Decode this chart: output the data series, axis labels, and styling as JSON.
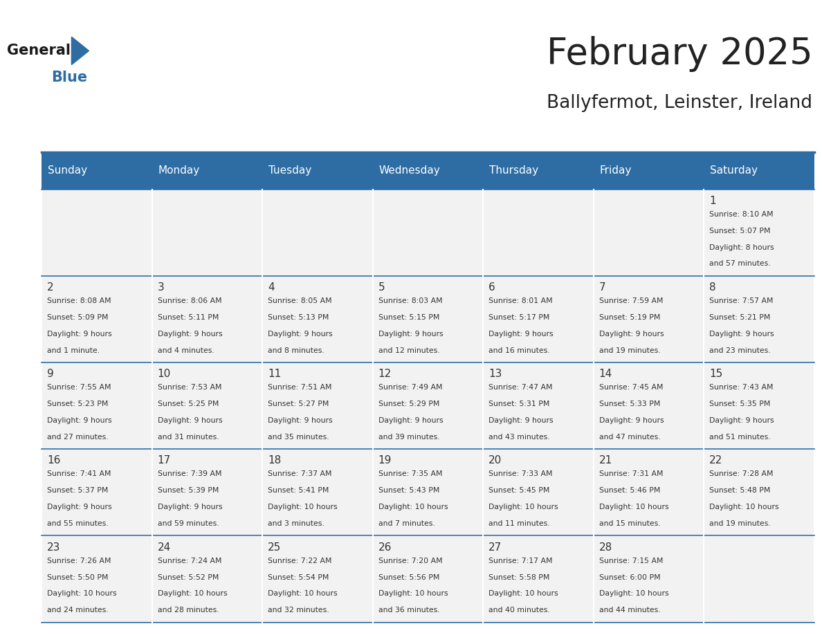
{
  "title": "February 2025",
  "subtitle": "Ballyfermot, Leinster, Ireland",
  "days_of_week": [
    "Sunday",
    "Monday",
    "Tuesday",
    "Wednesday",
    "Thursday",
    "Friday",
    "Saturday"
  ],
  "header_bg": "#2E6DA4",
  "header_fg": "#FFFFFF",
  "cell_bg": "#F2F2F2",
  "border_color": "#2E6DA4",
  "text_color": "#333333",
  "title_color": "#222222",
  "calendar": [
    [
      null,
      null,
      null,
      null,
      null,
      null,
      {
        "day": 1,
        "sunrise": "8:10 AM",
        "sunset": "5:07 PM",
        "daylight": "8 hours and 57 minutes."
      }
    ],
    [
      {
        "day": 2,
        "sunrise": "8:08 AM",
        "sunset": "5:09 PM",
        "daylight": "9 hours and 1 minute."
      },
      {
        "day": 3,
        "sunrise": "8:06 AM",
        "sunset": "5:11 PM",
        "daylight": "9 hours and 4 minutes."
      },
      {
        "day": 4,
        "sunrise": "8:05 AM",
        "sunset": "5:13 PM",
        "daylight": "9 hours and 8 minutes."
      },
      {
        "day": 5,
        "sunrise": "8:03 AM",
        "sunset": "5:15 PM",
        "daylight": "9 hours and 12 minutes."
      },
      {
        "day": 6,
        "sunrise": "8:01 AM",
        "sunset": "5:17 PM",
        "daylight": "9 hours and 16 minutes."
      },
      {
        "day": 7,
        "sunrise": "7:59 AM",
        "sunset": "5:19 PM",
        "daylight": "9 hours and 19 minutes."
      },
      {
        "day": 8,
        "sunrise": "7:57 AM",
        "sunset": "5:21 PM",
        "daylight": "9 hours and 23 minutes."
      }
    ],
    [
      {
        "day": 9,
        "sunrise": "7:55 AM",
        "sunset": "5:23 PM",
        "daylight": "9 hours and 27 minutes."
      },
      {
        "day": 10,
        "sunrise": "7:53 AM",
        "sunset": "5:25 PM",
        "daylight": "9 hours and 31 minutes."
      },
      {
        "day": 11,
        "sunrise": "7:51 AM",
        "sunset": "5:27 PM",
        "daylight": "9 hours and 35 minutes."
      },
      {
        "day": 12,
        "sunrise": "7:49 AM",
        "sunset": "5:29 PM",
        "daylight": "9 hours and 39 minutes."
      },
      {
        "day": 13,
        "sunrise": "7:47 AM",
        "sunset": "5:31 PM",
        "daylight": "9 hours and 43 minutes."
      },
      {
        "day": 14,
        "sunrise": "7:45 AM",
        "sunset": "5:33 PM",
        "daylight": "9 hours and 47 minutes."
      },
      {
        "day": 15,
        "sunrise": "7:43 AM",
        "sunset": "5:35 PM",
        "daylight": "9 hours and 51 minutes."
      }
    ],
    [
      {
        "day": 16,
        "sunrise": "7:41 AM",
        "sunset": "5:37 PM",
        "daylight": "9 hours and 55 minutes."
      },
      {
        "day": 17,
        "sunrise": "7:39 AM",
        "sunset": "5:39 PM",
        "daylight": "9 hours and 59 minutes."
      },
      {
        "day": 18,
        "sunrise": "7:37 AM",
        "sunset": "5:41 PM",
        "daylight": "10 hours and 3 minutes."
      },
      {
        "day": 19,
        "sunrise": "7:35 AM",
        "sunset": "5:43 PM",
        "daylight": "10 hours and 7 minutes."
      },
      {
        "day": 20,
        "sunrise": "7:33 AM",
        "sunset": "5:45 PM",
        "daylight": "10 hours and 11 minutes."
      },
      {
        "day": 21,
        "sunrise": "7:31 AM",
        "sunset": "5:46 PM",
        "daylight": "10 hours and 15 minutes."
      },
      {
        "day": 22,
        "sunrise": "7:28 AM",
        "sunset": "5:48 PM",
        "daylight": "10 hours and 19 minutes."
      }
    ],
    [
      {
        "day": 23,
        "sunrise": "7:26 AM",
        "sunset": "5:50 PM",
        "daylight": "10 hours and 24 minutes."
      },
      {
        "day": 24,
        "sunrise": "7:24 AM",
        "sunset": "5:52 PM",
        "daylight": "10 hours and 28 minutes."
      },
      {
        "day": 25,
        "sunrise": "7:22 AM",
        "sunset": "5:54 PM",
        "daylight": "10 hours and 32 minutes."
      },
      {
        "day": 26,
        "sunrise": "7:20 AM",
        "sunset": "5:56 PM",
        "daylight": "10 hours and 36 minutes."
      },
      {
        "day": 27,
        "sunrise": "7:17 AM",
        "sunset": "5:58 PM",
        "daylight": "10 hours and 40 minutes."
      },
      {
        "day": 28,
        "sunrise": "7:15 AM",
        "sunset": "6:00 PM",
        "daylight": "10 hours and 44 minutes."
      },
      null
    ]
  ]
}
